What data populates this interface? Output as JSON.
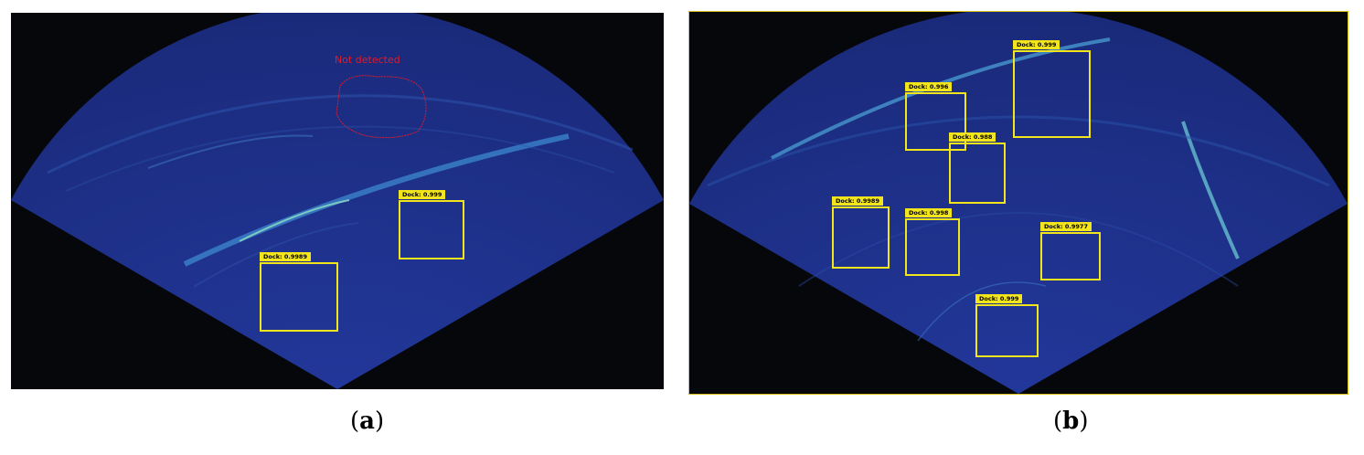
{
  "panel_a": {
    "caption_letter": "a",
    "annotation": "Not detected",
    "detections": [
      {
        "label": "Dock: 0.999"
      },
      {
        "label": "Dock: 0.9989"
      }
    ]
  },
  "panel_b": {
    "caption_letter": "b",
    "detections": [
      {
        "label": "Dock: 0.999"
      },
      {
        "label": "Dock: 0.996"
      },
      {
        "label": "Dock: 0.988"
      },
      {
        "label": "Dock: 0.9989"
      },
      {
        "label": "Dock: 0.998"
      },
      {
        "label": "Dock: 0.9977"
      },
      {
        "label": "Dock: 0.999"
      }
    ]
  },
  "colors": {
    "sonar_fill": "#1d2f86",
    "background": "#06070b",
    "box": "#f2e51b",
    "annotation": "#e01a2a"
  }
}
